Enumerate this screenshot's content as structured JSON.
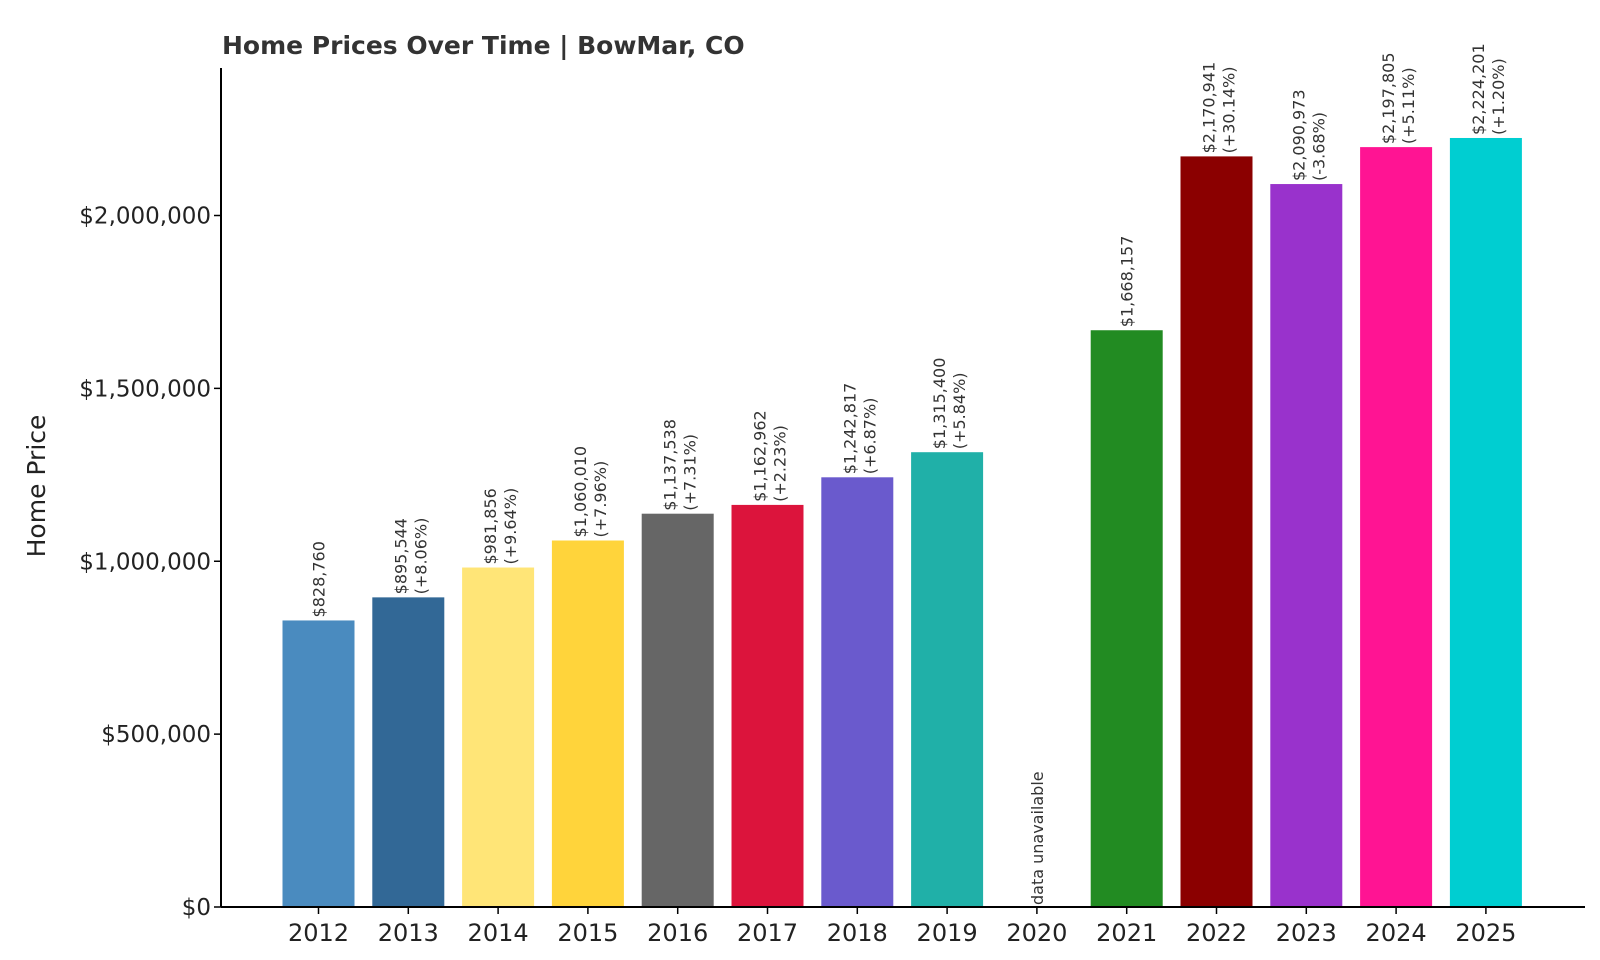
{
  "chart_data": {
    "type": "bar",
    "title": "Home Prices Over Time | BowMar, CO",
    "xlabel": "",
    "ylabel": "Home Price",
    "ylim": [
      0,
      2420000
    ],
    "yticks": [
      {
        "value": 0,
        "label": "$0"
      },
      {
        "value": 500000,
        "label": "$500,000"
      },
      {
        "value": 1000000,
        "label": "$1,000,000"
      },
      {
        "value": 1500000,
        "label": "$1,500,000"
      },
      {
        "value": 2000000,
        "label": "$2,000,000"
      }
    ],
    "grid": false,
    "categories": [
      "2012",
      "2013",
      "2014",
      "2015",
      "2016",
      "2017",
      "2018",
      "2019",
      "2020",
      "2021",
      "2022",
      "2023",
      "2024",
      "2025"
    ],
    "values": [
      828760,
      895544,
      981856,
      1060010,
      1137538,
      1162962,
      1242817,
      1315400,
      null,
      1668157,
      2170941,
      2090973,
      2197805,
      2224201
    ],
    "value_labels": [
      "$828,760",
      "$895,544",
      "$981,856",
      "$1,060,010",
      "$1,137,538",
      "$1,162,962",
      "$1,242,817",
      "$1,315,400",
      "",
      "$1,668,157",
      "$2,170,941",
      "$2,090,973",
      "$2,197,805",
      "$2,224,201"
    ],
    "change_labels": [
      "",
      "(+8.06%)",
      "(+9.64%)",
      "(+7.96%)",
      "(+7.31%)",
      "(+2.23%)",
      "(+6.87%)",
      "(+5.84%)",
      "",
      "",
      "(+30.14%)",
      "(-3.68%)",
      "(+5.11%)",
      "(+1.20%)"
    ],
    "colors": [
      "#4a8bbf",
      "#326896",
      "#ffe577",
      "#ffd43b",
      "#666666",
      "#dc143c",
      "#6a5acd",
      "#20b0a8",
      "#ffffff",
      "#228b22",
      "#8b0000",
      "#9932cc",
      "#ff1493",
      "#00ced1"
    ],
    "unavailable_label": "data unavailable"
  }
}
